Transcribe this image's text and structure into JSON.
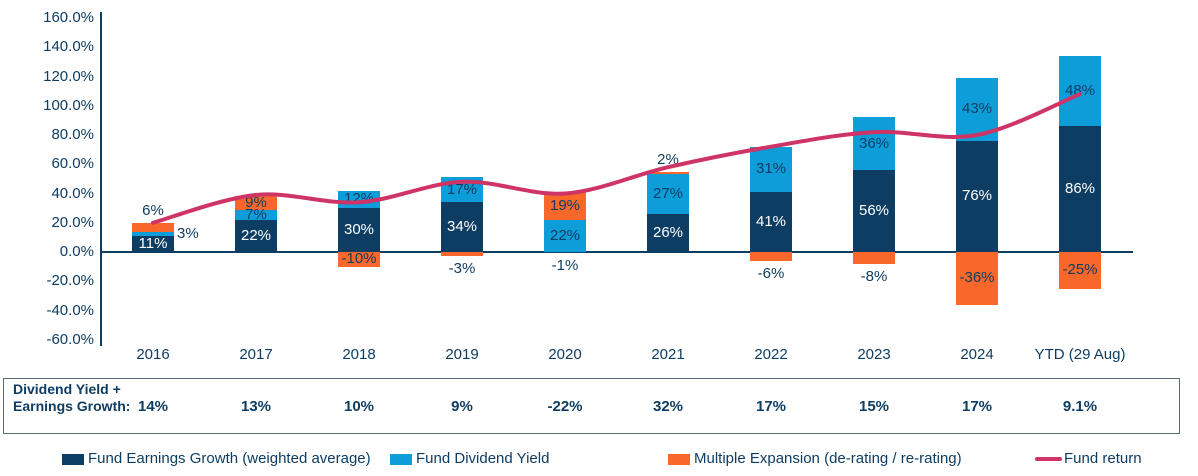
{
  "chart_data": {
    "type": "bar",
    "subtype": "stacked-bars-with-line-overlay",
    "categories": [
      "2016",
      "2017",
      "2018",
      "2019",
      "2020",
      "2021",
      "2022",
      "2023",
      "2024",
      "YTD (29 Aug)"
    ],
    "series": [
      {
        "key": "earnings",
        "name": "Fund Earnings Growth (weighted average)",
        "color": "#0e3d63",
        "inside_label_color": "#ffffff",
        "values": [
          11,
          22,
          30,
          34,
          -1,
          26,
          41,
          56,
          76,
          86
        ],
        "label_placement": [
          "in",
          "in",
          "in",
          "in",
          "below",
          "in",
          "in",
          "in",
          "in",
          "in"
        ]
      },
      {
        "key": "dividend",
        "name": "Fund Dividend Yield",
        "color": "#0d9dd9",
        "inside_label_color": "#0e3d63",
        "values": [
          3,
          7,
          12,
          17,
          22,
          27,
          31,
          36,
          43,
          48
        ],
        "label_placement": [
          "right",
          "in",
          "in",
          "in",
          "in",
          "in",
          "in",
          "in",
          "in",
          "in"
        ]
      },
      {
        "key": "expansion",
        "name": "Multiple Expansion (de-rating / re-rating)",
        "color": "#f9682a",
        "inside_label_color": "#0e3d63",
        "values": [
          6,
          9,
          -10,
          -3,
          19,
          2,
          -6,
          -8,
          -36,
          -25
        ],
        "label_placement": [
          "above",
          "in",
          "in",
          "below",
          "in",
          "above",
          "below",
          "below",
          "in",
          "in"
        ]
      }
    ],
    "line": {
      "name": "Fund return",
      "color": "#ce3465",
      "values_estimated_pct": [
        20,
        39,
        34,
        48,
        40,
        58,
        72,
        82,
        80,
        108
      ]
    },
    "ylim": [
      -60,
      160
    ],
    "ytick_step": 20,
    "ytick_labels": [
      "160.0%",
      "140.0%",
      "120.0%",
      "100.0%",
      "80.0%",
      "60.0%",
      "40.0%",
      "20.0%",
      "0.0%",
      "-20.0%",
      "-40.0%",
      "-60.0%"
    ],
    "grid": false,
    "legend_position": "bottom",
    "label_text_color": "#0e3d63"
  },
  "table": {
    "row_label_line1": "Dividend Yield +",
    "row_label_line2": "Earnings Growth:",
    "values": [
      "14%",
      "13%",
      "10%",
      "9%",
      "-22%",
      "32%",
      "17%",
      "15%",
      "17%",
      "9.1%"
    ]
  },
  "legend": [
    {
      "key": "earnings",
      "label": "Fund Earnings Growth (weighted average)",
      "color": "#0e3d63",
      "swatch": "rect"
    },
    {
      "key": "dividend",
      "label": "Fund Dividend Yield",
      "color": "#0d9dd9",
      "swatch": "rect"
    },
    {
      "key": "expansion",
      "label": "Multiple Expansion (de-rating / re-rating)",
      "color": "#f9682a",
      "swatch": "rect"
    },
    {
      "key": "fund-return",
      "label": "Fund return",
      "color": "#ce3465",
      "swatch": "line"
    }
  ]
}
